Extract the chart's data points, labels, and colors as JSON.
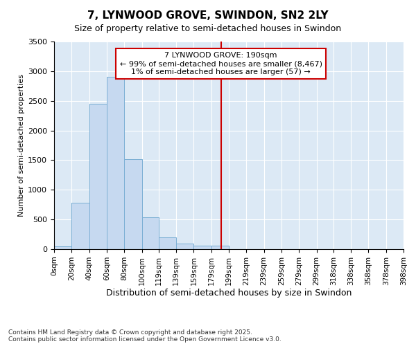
{
  "title": "7, LYNWOOD GROVE, SWINDON, SN2 2LY",
  "subtitle": "Size of property relative to semi-detached houses in Swindon",
  "xlabel": "Distribution of semi-detached houses by size in Swindon",
  "ylabel": "Number of semi-detached properties",
  "footnote": "Contains HM Land Registry data © Crown copyright and database right 2025.\nContains public sector information licensed under the Open Government Licence v3.0.",
  "bar_left_edges": [
    0,
    20,
    40,
    60,
    80,
    100,
    119,
    139,
    159,
    179,
    199,
    219,
    239,
    259,
    279,
    299,
    318,
    338,
    358,
    378
  ],
  "bar_widths": [
    20,
    20,
    20,
    20,
    20,
    19,
    20,
    20,
    20,
    20,
    20,
    20,
    20,
    20,
    20,
    19,
    20,
    20,
    20,
    20
  ],
  "bar_heights": [
    50,
    780,
    2450,
    2900,
    1520,
    540,
    200,
    90,
    55,
    55,
    0,
    0,
    0,
    0,
    0,
    0,
    0,
    0,
    0,
    0
  ],
  "tick_labels": [
    "0sqm",
    "20sqm",
    "40sqm",
    "60sqm",
    "80sqm",
    "100sqm",
    "119sqm",
    "139sqm",
    "159sqm",
    "179sqm",
    "199sqm",
    "219sqm",
    "239sqm",
    "259sqm",
    "279sqm",
    "299sqm",
    "318sqm",
    "338sqm",
    "358sqm",
    "378sqm",
    "398sqm"
  ],
  "bar_color": "#c6d9f0",
  "bar_edge_color": "#7bafd4",
  "background_color": "#dce9f5",
  "grid_color": "#ffffff",
  "vline_x": 190,
  "vline_color": "#cc0000",
  "annotation_text": "7 LYNWOOD GROVE: 190sqm\n← 99% of semi-detached houses are smaller (8,467)\n1% of semi-detached houses are larger (57) →",
  "annotation_box_color": "#ffffff",
  "annotation_box_edge": "#cc0000",
  "ylim": [
    0,
    3500
  ],
  "yticks": [
    0,
    500,
    1000,
    1500,
    2000,
    2500,
    3000,
    3500
  ],
  "figsize": [
    6.0,
    5.0
  ],
  "dpi": 100
}
